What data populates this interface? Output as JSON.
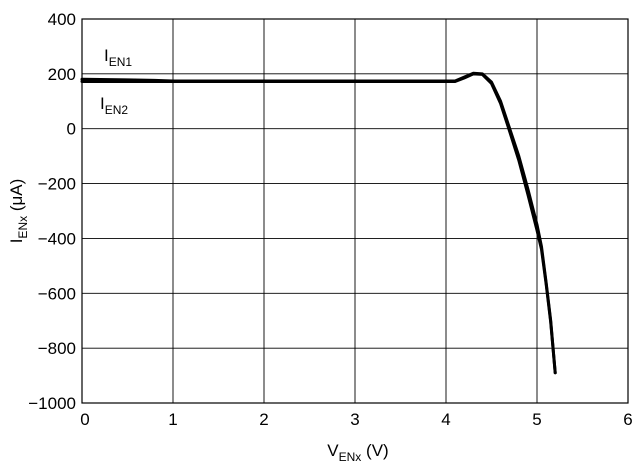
{
  "chart_data": {
    "type": "line",
    "xlabel": {
      "main": "V",
      "sub": "ENx",
      "unit": " (V)"
    },
    "ylabel": {
      "main": "I",
      "sub": "ENx",
      "unit": " (μA)"
    },
    "xlim": [
      0,
      6
    ],
    "ylim": [
      -1000,
      400
    ],
    "x_ticks": [
      "0",
      "1",
      "2",
      "3",
      "4",
      "5",
      "6"
    ],
    "y_ticks": [
      "400",
      "200",
      "0",
      "−200",
      "−400",
      "−600",
      "−800",
      "−1000"
    ],
    "grid": true,
    "annotations": [
      {
        "main": "I",
        "sub": "EN1"
      },
      {
        "main": "I",
        "sub": "EN2"
      }
    ],
    "series": [
      {
        "points": [
          [
            0,
            180
          ],
          [
            0.5,
            178
          ],
          [
            0.8,
            176
          ],
          [
            1.0,
            174
          ],
          [
            2.0,
            174
          ],
          [
            3.0,
            174
          ],
          [
            4.0,
            174
          ],
          [
            4.1,
            174
          ],
          [
            4.2,
            188
          ],
          [
            4.3,
            202
          ],
          [
            4.4,
            200
          ],
          [
            4.5,
            170
          ],
          [
            4.6,
            100
          ],
          [
            4.7,
            0
          ],
          [
            4.8,
            -100
          ],
          [
            4.9,
            -220
          ],
          [
            5.0,
            -350
          ],
          [
            5.05,
            -430
          ],
          [
            5.1,
            -560
          ],
          [
            5.15,
            -700
          ],
          [
            5.2,
            -890
          ]
        ]
      },
      {
        "points": [
          [
            0,
            172
          ],
          [
            1.0,
            172
          ],
          [
            2.0,
            172
          ],
          [
            3.0,
            172
          ],
          [
            4.0,
            172
          ],
          [
            4.1,
            172
          ],
          [
            4.2,
            185
          ],
          [
            4.3,
            200
          ],
          [
            4.4,
            198
          ],
          [
            4.5,
            165
          ],
          [
            4.6,
            92
          ],
          [
            4.7,
            -10
          ],
          [
            4.8,
            -115
          ],
          [
            4.9,
            -240
          ],
          [
            5.0,
            -370
          ],
          [
            5.05,
            -440
          ],
          [
            5.1,
            -565
          ],
          [
            5.15,
            -705
          ],
          [
            5.2,
            -890
          ]
        ]
      }
    ]
  }
}
